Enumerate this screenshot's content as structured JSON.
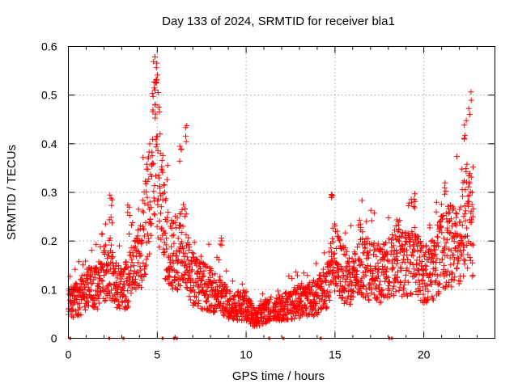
{
  "chart_data": {
    "type": "scatter",
    "title": "Day 133 of 2024, SRMTID for receiver bla1",
    "xlabel": "GPS time / hours",
    "ylabel": "SRMTID / TECUs",
    "xlim": [
      0,
      24
    ],
    "ylim": [
      0,
      0.6
    ],
    "xticks": [
      0,
      5,
      10,
      15,
      20
    ],
    "xtick_labels": [
      "0",
      "5",
      "10",
      "15",
      "20"
    ],
    "yticks": [
      0,
      0.1,
      0.2,
      0.3,
      0.4,
      0.5,
      0.6
    ],
    "ytick_labels": [
      "0",
      "0.1",
      "0.2",
      "0.3",
      "0.4",
      "0.5",
      "0.6"
    ],
    "grid": true,
    "marker": "+",
    "color": "#ff0000",
    "series": [
      {
        "name": "SRMTID",
        "x_start": 0.0,
        "x_end": 22.8,
        "step_hours": 0.01,
        "trend": [
          [
            0.0,
            0.07
          ],
          [
            0.5,
            0.08
          ],
          [
            1.0,
            0.1
          ],
          [
            1.5,
            0.1
          ],
          [
            2.0,
            0.13
          ],
          [
            2.3,
            0.15
          ],
          [
            2.6,
            0.11
          ],
          [
            3.0,
            0.1
          ],
          [
            3.5,
            0.12
          ],
          [
            4.0,
            0.16
          ],
          [
            4.4,
            0.25
          ],
          [
            4.7,
            0.37
          ],
          [
            4.9,
            0.42
          ],
          [
            5.2,
            0.3
          ],
          [
            5.5,
            0.2
          ],
          [
            5.8,
            0.17
          ],
          [
            6.2,
            0.18
          ],
          [
            6.5,
            0.22
          ],
          [
            6.8,
            0.13
          ],
          [
            7.5,
            0.11
          ],
          [
            8.0,
            0.1
          ],
          [
            8.5,
            0.09
          ],
          [
            9.0,
            0.07
          ],
          [
            10.0,
            0.065
          ],
          [
            10.5,
            0.04
          ],
          [
            11.0,
            0.055
          ],
          [
            11.5,
            0.06
          ],
          [
            12.0,
            0.065
          ],
          [
            13.0,
            0.075
          ],
          [
            14.0,
            0.085
          ],
          [
            14.6,
            0.11
          ],
          [
            14.9,
            0.17
          ],
          [
            15.5,
            0.13
          ],
          [
            16.0,
            0.12
          ],
          [
            16.5,
            0.15
          ],
          [
            17.0,
            0.14
          ],
          [
            17.5,
            0.13
          ],
          [
            18.0,
            0.14
          ],
          [
            18.5,
            0.16
          ],
          [
            19.0,
            0.15
          ],
          [
            19.5,
            0.16
          ],
          [
            20.0,
            0.13
          ],
          [
            20.5,
            0.14
          ],
          [
            21.0,
            0.18
          ],
          [
            21.5,
            0.19
          ],
          [
            22.0,
            0.2
          ],
          [
            22.4,
            0.25
          ],
          [
            22.8,
            0.22
          ]
        ],
        "spikes": [
          [
            2.4,
            0.3
          ],
          [
            3.4,
            0.28
          ],
          [
            4.8,
            0.53
          ],
          [
            5.0,
            0.57
          ],
          [
            6.3,
            0.4
          ],
          [
            6.6,
            0.44
          ],
          [
            8.6,
            0.21
          ],
          [
            14.8,
            0.3
          ],
          [
            16.5,
            0.24
          ],
          [
            18.5,
            0.25
          ],
          [
            19.5,
            0.29
          ],
          [
            21.2,
            0.32
          ],
          [
            22.3,
            0.45
          ],
          [
            22.6,
            0.51
          ]
        ],
        "gaps": [
          [
            11.4,
            11.5
          ],
          [
            18.1,
            18.15
          ]
        ]
      }
    ]
  }
}
